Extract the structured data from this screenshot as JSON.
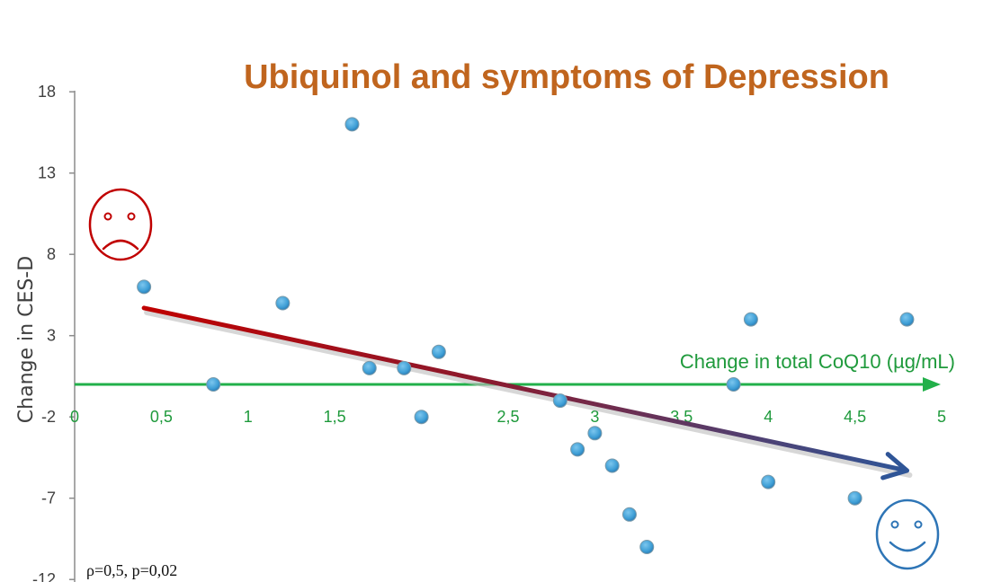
{
  "chart_data": {
    "type": "scatter",
    "title": "Ubiquinol and symptoms of Depression",
    "xlabel": "Change in total CoQ10 (µg/mL)",
    "ylabel": "Change in CES-D",
    "xlim": [
      0,
      5
    ],
    "ylim": [
      -12,
      18
    ],
    "x_ticks": [
      0,
      0.5,
      1,
      1.5,
      2,
      2.5,
      3,
      3.5,
      4,
      4.5,
      5
    ],
    "x_tick_labels": [
      "0",
      "0,5",
      "1",
      "1,5",
      "2",
      "2,5",
      "3",
      "3,5",
      "4",
      "4,5",
      "5"
    ],
    "y_ticks": [
      18,
      13,
      8,
      3,
      -2,
      -7,
      -12
    ],
    "y_tick_labels": [
      "18",
      "13",
      "8",
      "3",
      "-2",
      "-7",
      "-12"
    ],
    "annotation": "ρ=0,5, p=0,02",
    "grid": false,
    "series": [
      {
        "points": [
          [
            0.4,
            6
          ],
          [
            0.8,
            0
          ],
          [
            1.2,
            5
          ],
          [
            1.6,
            16
          ],
          [
            1.7,
            1
          ],
          [
            1.9,
            1
          ],
          [
            2.0,
            -2
          ],
          [
            2.1,
            2
          ],
          [
            2.8,
            -1
          ],
          [
            2.9,
            -4
          ],
          [
            3.0,
            -3
          ],
          [
            3.1,
            -5
          ],
          [
            3.2,
            -8
          ],
          [
            3.3,
            -10
          ],
          [
            3.8,
            0
          ],
          [
            3.9,
            4
          ],
          [
            4.0,
            -6
          ],
          [
            4.5,
            -7
          ],
          [
            4.8,
            4
          ]
        ]
      }
    ],
    "trend_arrow": {
      "from": [
        0.4,
        4.7
      ],
      "to": [
        4.8,
        -5.3
      ]
    },
    "icons": [
      "sad-face-icon",
      "happy-face-icon"
    ],
    "colors": {
      "title": "#c0651e",
      "x_axis": "#22b04a",
      "y_axis": "#7f7f7f",
      "points": "#4aa3d8",
      "arrow_start": "#c00000",
      "arrow_end": "#2f5597",
      "sad_face": "#c00000",
      "happy_face": "#2e75b6"
    }
  }
}
